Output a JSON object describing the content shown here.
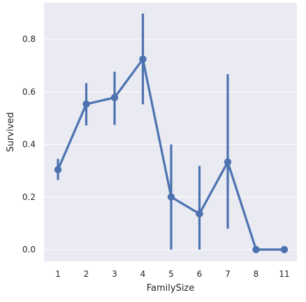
{
  "chart_data": {
    "type": "line",
    "subtype": "pointplot",
    "title": "",
    "xlabel": "FamilySize",
    "ylabel": "Survived",
    "categories": [
      "1",
      "2",
      "3",
      "4",
      "5",
      "6",
      "7",
      "8",
      "11"
    ],
    "series": [
      {
        "values": [
          0.304,
          0.553,
          0.578,
          0.724,
          0.2,
          0.136,
          0.333,
          0.0,
          0.0
        ],
        "ci_lower": [
          0.265,
          0.472,
          0.474,
          0.552,
          0.0,
          0.0,
          0.079,
          0.0,
          0.0
        ],
        "ci_upper": [
          0.345,
          0.633,
          0.676,
          0.897,
          0.4,
          0.318,
          0.667,
          0.0,
          0.0
        ],
        "color": "#4c72b0"
      }
    ],
    "yticks": [
      "0.0",
      "0.2",
      "0.4",
      "0.6",
      "0.8"
    ],
    "ylim": [
      -0.045,
      0.945
    ],
    "grid": true,
    "background_color": "#eaeaf2",
    "grid_color": "#ffffff"
  }
}
